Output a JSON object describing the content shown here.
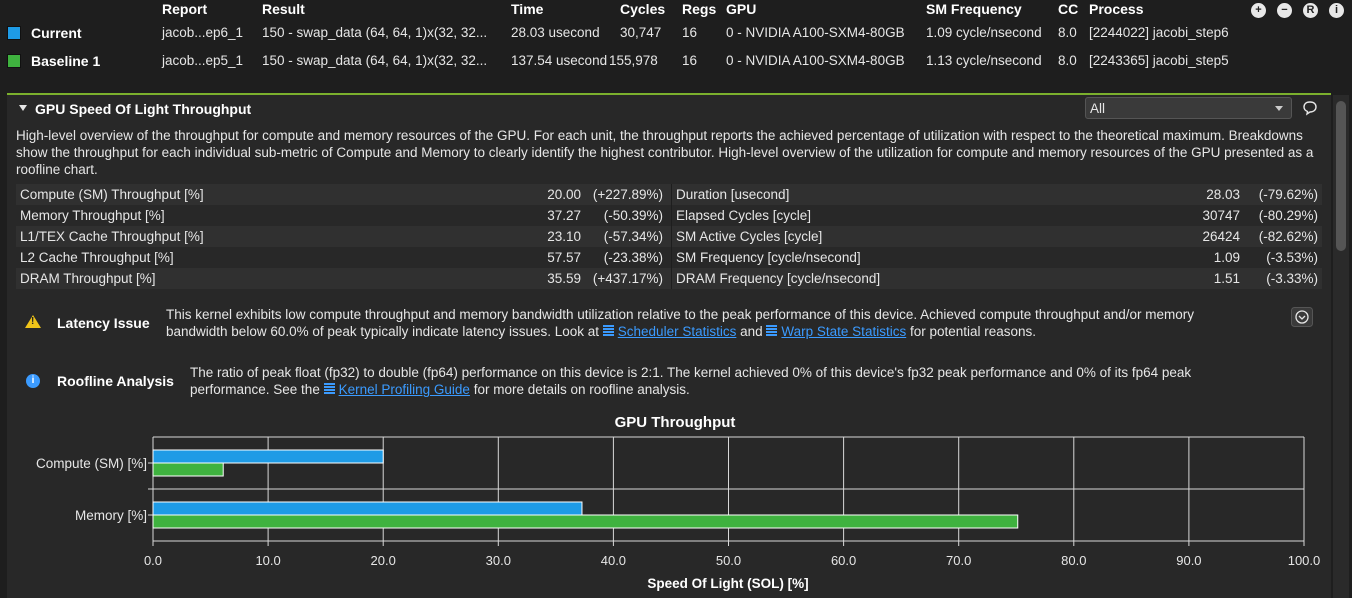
{
  "header": {
    "columns": [
      "Report",
      "Result",
      "Time",
      "Cycles",
      "Regs",
      "GPU",
      "SM Frequency",
      "CC",
      "Process"
    ],
    "toolbar_icons": [
      "zoom-in-icon",
      "zoom-out-icon",
      "reset-icon",
      "info-icon"
    ],
    "toolbar_glyphs": [
      "+",
      "−",
      "R",
      "i"
    ]
  },
  "results": [
    {
      "name": "Current",
      "color": "#1e9be6",
      "report": "jacob...ep6_1",
      "result": "150 - swap_data (64, 64, 1)x(32, 32...",
      "time": "28.03 usecond",
      "cycles": "30,747",
      "regs": "16",
      "gpu": "0 - NVIDIA A100-SXM4-80GB",
      "sm_freq": "1.09 cycle/nsecond",
      "cc": "8.0",
      "process": "[2244022] jacobi_step6"
    },
    {
      "name": "Baseline 1",
      "color": "#3fb23f",
      "report": "jacob...ep5_1",
      "result": "150 - swap_data (64, 64, 1)x(32, 32...",
      "time": "137.54 usecond",
      "cycles": "155,978",
      "regs": "16",
      "gpu": "0 - NVIDIA A100-SXM4-80GB",
      "sm_freq": "1.13 cycle/nsecond",
      "cc": "8.0",
      "process": "[2243365] jacobi_step5"
    }
  ],
  "section": {
    "title": "GPU Speed Of Light Throughput",
    "filter_value": "All",
    "description": "High-level overview of the throughput for compute and memory resources of the GPU. For each unit, the throughput reports the achieved percentage of utilization with respect to the theoretical maximum. Breakdowns show the throughput for each individual sub-metric of Compute and Memory to clearly identify the highest contributor. High-level overview of the utilization for compute and memory resources of the GPU presented as a roofline chart."
  },
  "metrics_left": [
    {
      "name": "Compute (SM) Throughput [%]",
      "value": "20.00",
      "delta": "(+227.89%)"
    },
    {
      "name": "Memory Throughput [%]",
      "value": "37.27",
      "delta": "(-50.39%)"
    },
    {
      "name": "L1/TEX Cache Throughput [%]",
      "value": "23.10",
      "delta": "(-57.34%)"
    },
    {
      "name": "L2 Cache Throughput [%]",
      "value": "57.57",
      "delta": "(-23.38%)"
    },
    {
      "name": "DRAM Throughput [%]",
      "value": "35.59",
      "delta": "(+437.17%)"
    }
  ],
  "metrics_right": [
    {
      "name": "Duration [usecond]",
      "value": "28.03",
      "delta": "(-79.62%)"
    },
    {
      "name": "Elapsed Cycles [cycle]",
      "value": "30747",
      "delta": "(-80.29%)"
    },
    {
      "name": "SM Active Cycles [cycle]",
      "value": "26424",
      "delta": "(-82.62%)"
    },
    {
      "name": "SM Frequency [cycle/nsecond]",
      "value": "1.09",
      "delta": "(-3.53%)"
    },
    {
      "name": "DRAM Frequency [cycle/nsecond]",
      "value": "1.51",
      "delta": "(-3.33%)"
    }
  ],
  "issues": [
    {
      "title": "Latency Issue",
      "text_1": "This kernel exhibits low compute throughput and memory bandwidth utilization relative to the peak performance of this device. Achieved compute throughput and/or memory",
      "text_2a": "bandwidth below 60.0% of peak typically indicate latency issues. Look at",
      "link_1": "Scheduler Statistics",
      "text_2b": "and",
      "link_2": "Warp State Statistics",
      "text_2c": "for potential reasons."
    },
    {
      "title": "Roofline Analysis",
      "text_1": "The ratio of peak float (fp32) to double (fp64) performance on this device is 2:1. The kernel achieved 0% of this device's fp32 peak performance and 0% of its fp64 peak",
      "text_2a": "performance. See the",
      "link_1": "Kernel Profiling Guide",
      "text_2b": "for more details on roofline analysis."
    }
  ],
  "chart_data": {
    "type": "bar",
    "orientation": "horizontal",
    "title": "GPU Throughput",
    "xlabel": "Speed Of Light (SOL) [%]",
    "ylabel": "",
    "categories": [
      "Compute (SM) [%]",
      "Memory [%]"
    ],
    "series": [
      {
        "name": "Current",
        "color": "#1e9be6",
        "values": [
          20.0,
          37.27
        ]
      },
      {
        "name": "Baseline 1",
        "color": "#3fb23f",
        "values": [
          6.1,
          75.13
        ]
      }
    ],
    "xlim": [
      0,
      100
    ],
    "xticks": [
      "0.0",
      "10.0",
      "20.0",
      "30.0",
      "40.0",
      "50.0",
      "60.0",
      "70.0",
      "80.0",
      "90.0",
      "100.0"
    ],
    "grid": true
  }
}
